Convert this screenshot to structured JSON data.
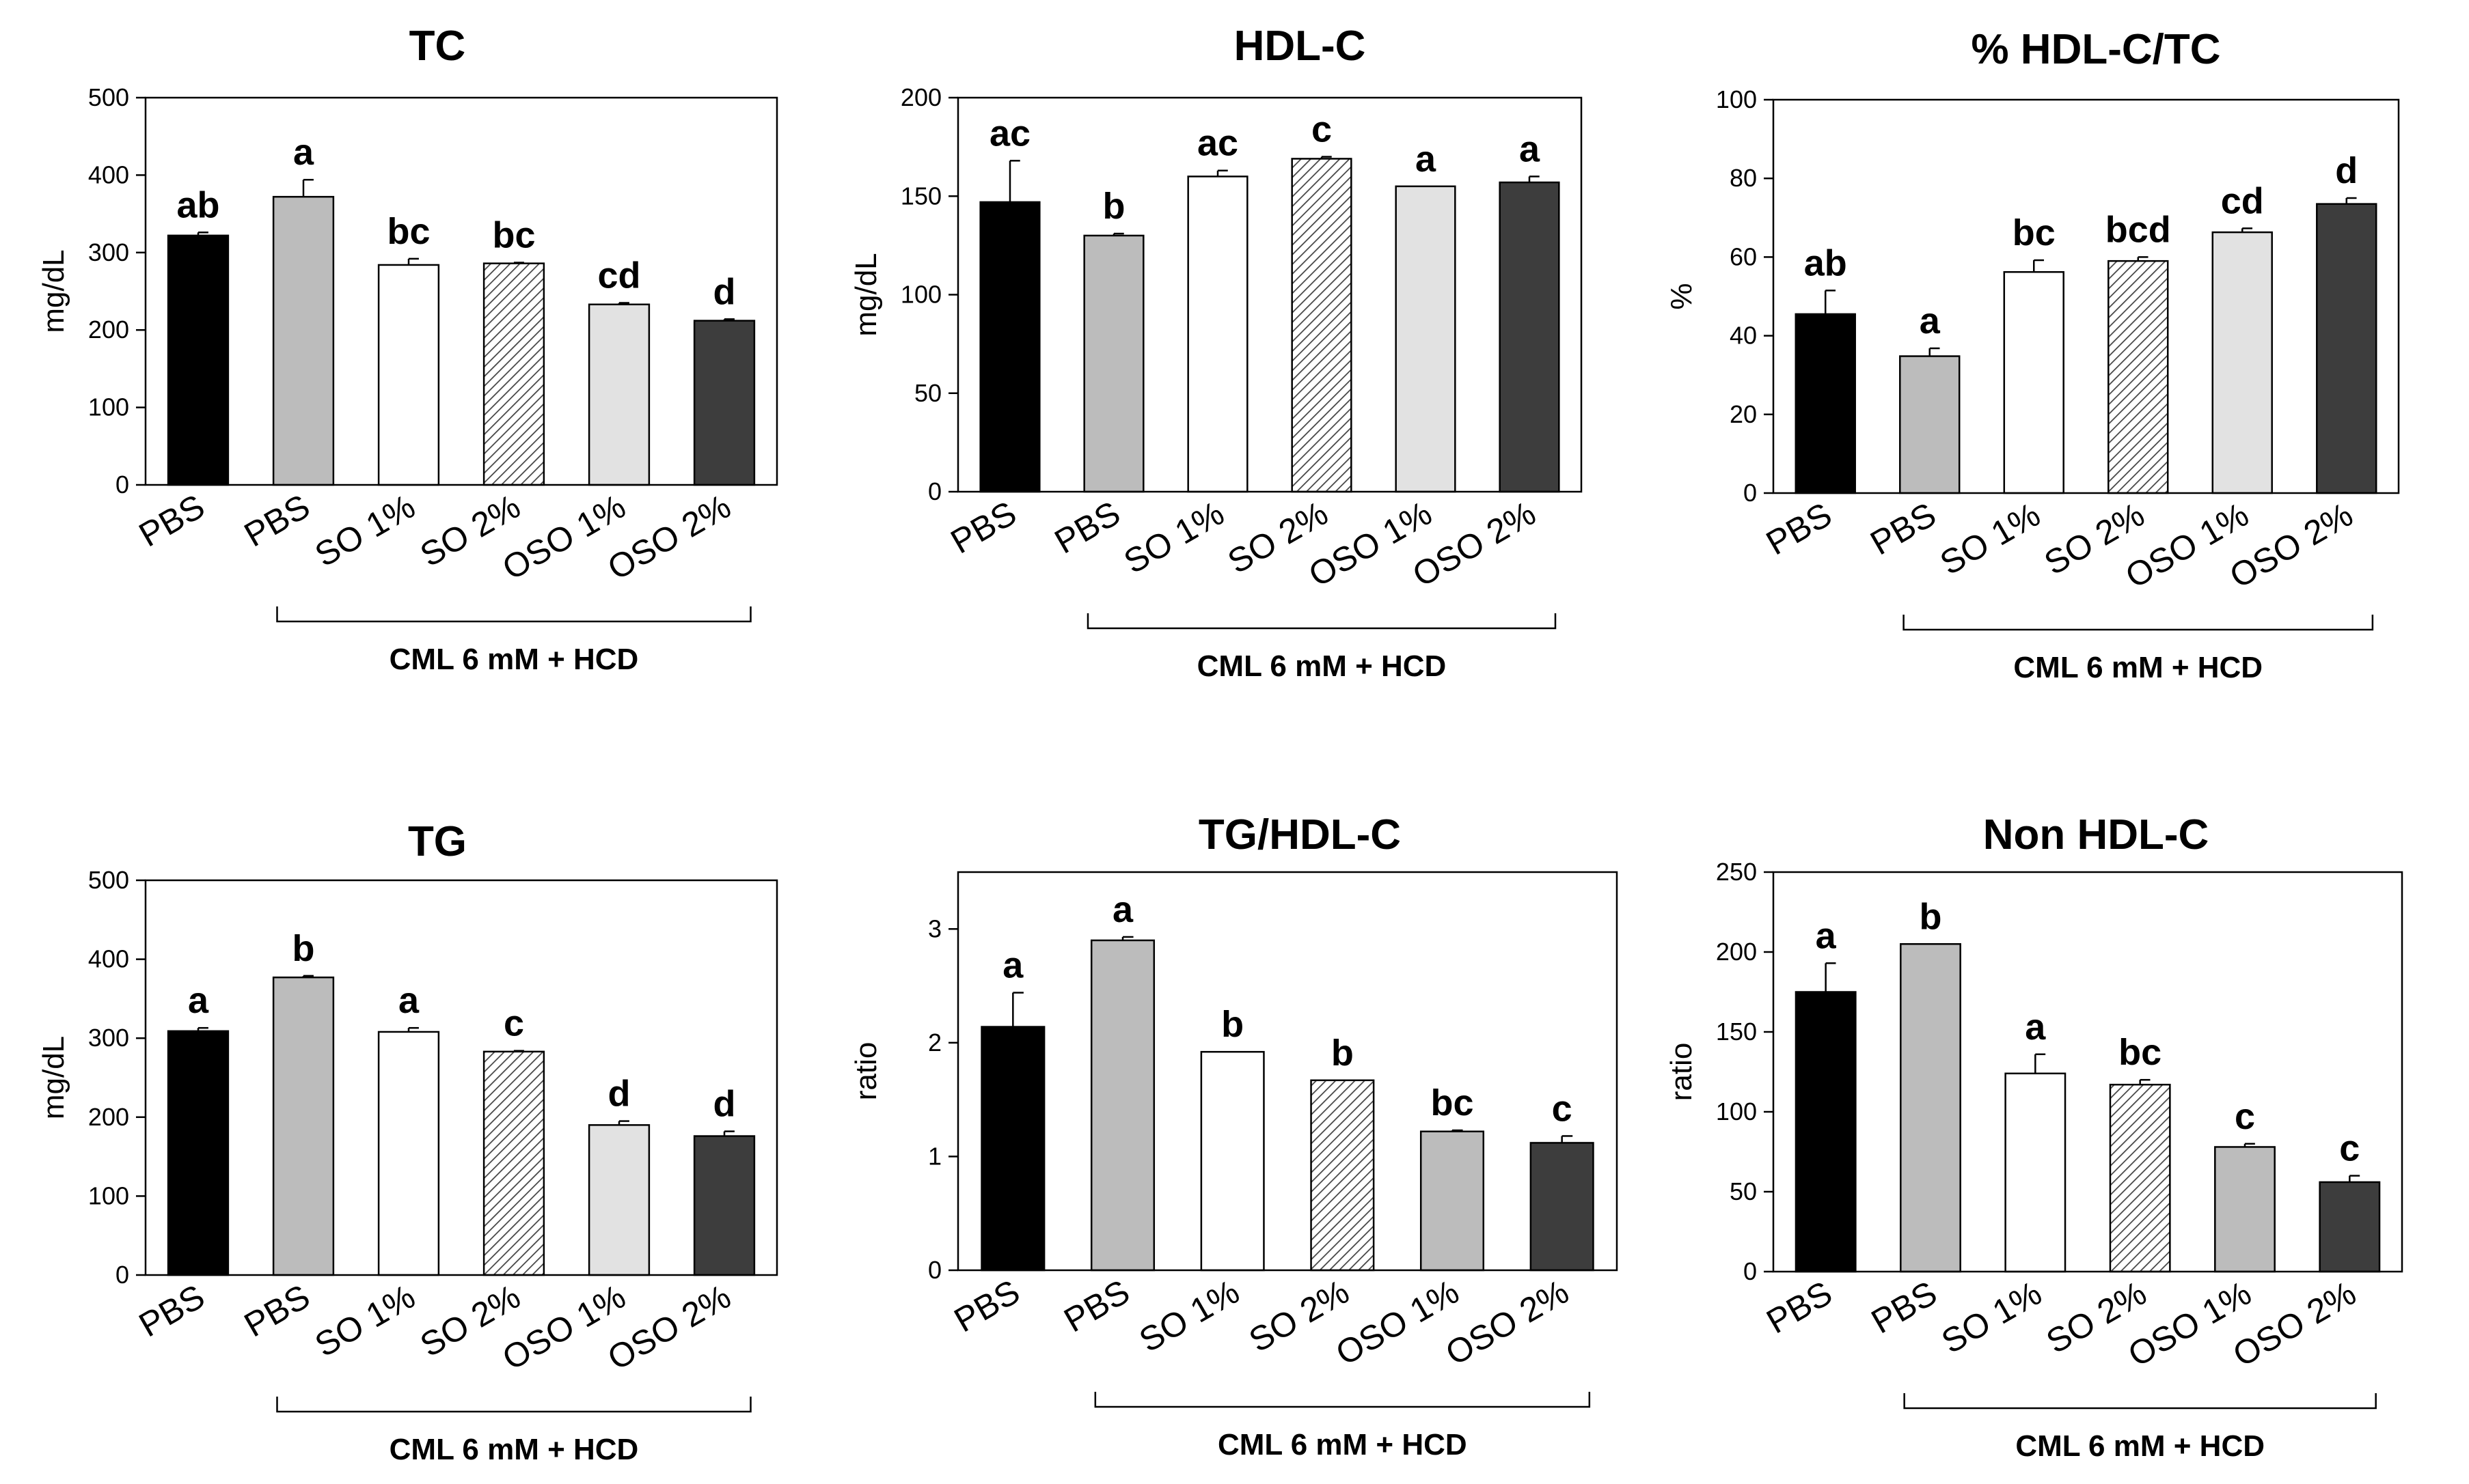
{
  "group_label": "CML 6 mM + HCD",
  "colors": {
    "black": "#000000",
    "gray": "#bcbcbc",
    "white": "#ffffff",
    "hatch": "#cfcfcf",
    "light": "#e2e2e2",
    "dark": "#3d3d3d"
  },
  "chart_data": [
    {
      "type": "bar",
      "title": "TC",
      "ylabel": "mg/dL",
      "ylim": [
        0,
        500
      ],
      "yticks": [
        "0",
        "100",
        "200",
        "300",
        "400",
        "500"
      ],
      "categories": [
        "PBS",
        "PBS",
        "SO 1%",
        "SO 2%",
        "OSO 1%",
        "OSO 2%"
      ],
      "values": [
        322,
        372,
        284,
        286,
        233,
        212
      ],
      "errors": [
        4,
        22,
        8,
        1,
        2,
        2
      ],
      "significance": [
        "ab",
        "a",
        "bc",
        "bc",
        "cd",
        "d"
      ],
      "fills": [
        "black",
        "gray",
        "white",
        "hatch",
        "light",
        "dark"
      ]
    },
    {
      "type": "bar",
      "title": "HDL-C",
      "ylabel": "mg/dL",
      "ylim": [
        0,
        200
      ],
      "yticks": [
        "0",
        "50",
        "100",
        "150",
        "200"
      ],
      "categories": [
        "PBS",
        "PBS",
        "SO 1%",
        "SO 2%",
        "OSO 1%",
        "OSO 2%"
      ],
      "values": [
        147,
        130,
        160,
        169,
        155,
        157
      ],
      "errors": [
        21,
        1,
        3,
        1,
        0,
        3
      ],
      "significance": [
        "ac",
        "b",
        "ac",
        "c",
        "a",
        "a"
      ],
      "fills": [
        "black",
        "gray",
        "white",
        "hatch",
        "light",
        "dark"
      ]
    },
    {
      "type": "bar",
      "title": "% HDL-C/TC",
      "ylabel": "%",
      "ylim": [
        0,
        100
      ],
      "yticks": [
        "0",
        "20",
        "40",
        "60",
        "80",
        "100"
      ],
      "categories": [
        "PBS",
        "PBS",
        "SO 1%",
        "SO 2%",
        "OSO 1%",
        "OSO 2%"
      ],
      "values": [
        45.5,
        34.8,
        56.2,
        59,
        66.3,
        73.5
      ],
      "errors": [
        6,
        2,
        3,
        1,
        1,
        1.5
      ],
      "significance": [
        "ab",
        "a",
        "bc",
        "bcd",
        "cd",
        "d"
      ],
      "fills": [
        "black",
        "gray",
        "white",
        "hatch",
        "light",
        "dark"
      ]
    },
    {
      "type": "bar",
      "title": "TG",
      "ylabel": "mg/dL",
      "ylim": [
        0,
        500
      ],
      "yticks": [
        "0",
        "100",
        "200",
        "300",
        "400",
        "500"
      ],
      "categories": [
        "PBS",
        "PBS",
        "SO 1%",
        "SO 2%",
        "OSO 1%",
        "OSO 2%"
      ],
      "values": [
        309,
        377,
        308,
        283,
        190,
        176
      ],
      "errors": [
        4,
        2,
        5,
        1,
        5,
        6
      ],
      "significance": [
        "a",
        "b",
        "a",
        "c",
        "d",
        "d"
      ],
      "fills": [
        "black",
        "gray",
        "white",
        "hatch",
        "light",
        "dark"
      ]
    },
    {
      "type": "bar",
      "title": "TG/HDL-C",
      "ylabel": "ratio",
      "ylim": [
        0,
        3.5
      ],
      "yticks": [
        "0",
        "1",
        "2",
        "3"
      ],
      "ytick_values": [
        0,
        1,
        2,
        3
      ],
      "categories": [
        "PBS",
        "PBS",
        "SO 1%",
        "SO 2%",
        "OSO 1%",
        "OSO 2%"
      ],
      "values": [
        2.14,
        2.9,
        1.92,
        1.67,
        1.22,
        1.12
      ],
      "errors": [
        0.3,
        0.03,
        0,
        0,
        0.01,
        0.06
      ],
      "significance": [
        "a",
        "a",
        "b",
        "b",
        "bc",
        "c"
      ],
      "fills": [
        "black",
        "gray",
        "white",
        "hatch",
        "gray",
        "dark"
      ]
    },
    {
      "type": "bar",
      "title": "Non HDL-C",
      "ylabel": "ratio",
      "ylim": [
        0,
        250
      ],
      "yticks": [
        "0",
        "50",
        "100",
        "150",
        "200",
        "250"
      ],
      "categories": [
        "PBS",
        "PBS",
        "SO 1%",
        "SO 2%",
        "OSO 1%",
        "OSO 2%"
      ],
      "values": [
        175,
        205,
        124,
        117,
        78,
        56
      ],
      "errors": [
        18,
        0,
        12,
        3,
        2,
        4
      ],
      "significance": [
        "a",
        "b",
        "a",
        "bc",
        "c",
        "c"
      ],
      "fills": [
        "black",
        "gray",
        "white",
        "hatch",
        "gray",
        "dark"
      ]
    }
  ]
}
